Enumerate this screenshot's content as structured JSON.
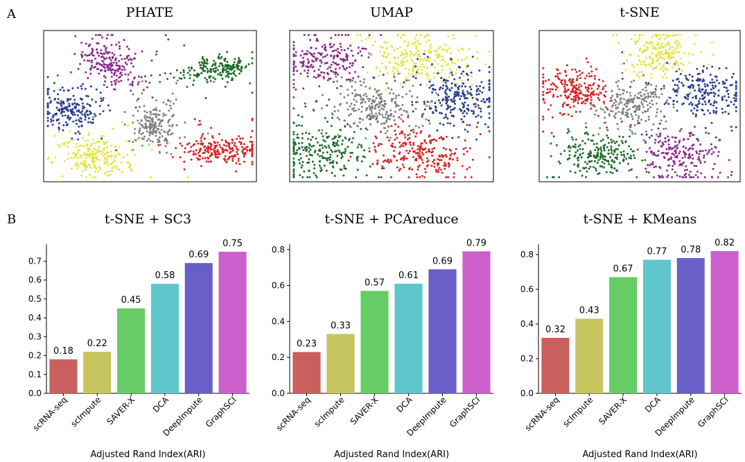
{
  "panel_labels": [
    "A",
    "B"
  ],
  "embeddings": {
    "titles": [
      "PHATE",
      "UMAP",
      "t-SNE"
    ]
  },
  "chart_data": [
    {
      "type": "bar",
      "title": "t-SNE + SC3",
      "categories": [
        "scRNA-seq",
        "scImpute",
        "SAVER-X",
        "DCA",
        "DeepImpute",
        "GraphSCI"
      ],
      "values": [
        0.18,
        0.22,
        0.45,
        0.58,
        0.69,
        0.75
      ],
      "colors": [
        "#c9605e",
        "#c6c45e",
        "#66cc66",
        "#5fc6cc",
        "#6a5fc8",
        "#cc5fcc"
      ],
      "ylim": [
        0,
        0.79
      ],
      "yticks": [
        {
          "value": 0,
          "label": "0.0"
        },
        0.1,
        0.2,
        0.3,
        0.4,
        0.5,
        0.6,
        0.7
      ],
      "xlabel": "Adjusted Rand Index(ARI)"
    },
    {
      "type": "bar",
      "title": "t-SNE + PCAreduce",
      "categories": [
        "scRNA-seq",
        "scImpute",
        "SAVER-X",
        "DCA",
        "DeepImpute",
        "GraphSCI"
      ],
      "values": [
        0.23,
        0.33,
        0.57,
        0.61,
        0.69,
        0.79
      ],
      "colors": [
        "#c9605e",
        "#c6c45e",
        "#66cc66",
        "#5fc6cc",
        "#6a5fc8",
        "#cc5fcc"
      ],
      "ylim": [
        0,
        0.83
      ],
      "yticks": [
        {
          "value": 0,
          "label": "0.0"
        },
        0.2,
        0.4,
        0.6,
        0.8
      ],
      "xlabel": "Adjusted Rand Index(ARI)"
    },
    {
      "type": "bar",
      "title": "t-SNE + KMeans",
      "categories": [
        "scRNA-seq",
        "scImpute",
        "SAVER-X",
        "DCA",
        "DeepImpute",
        "GraphSCI"
      ],
      "values": [
        0.32,
        0.43,
        0.67,
        0.77,
        0.78,
        0.82
      ],
      "colors": [
        "#c9605e",
        "#c6c45e",
        "#66cc66",
        "#5fc6cc",
        "#6a5fc8",
        "#cc5fcc"
      ],
      "ylim": [
        0,
        0.86
      ],
      "yticks": [
        {
          "value": 0,
          "label": "0.0"
        },
        0.2,
        0.4,
        0.6,
        0.8
      ],
      "xlabel": "Adjusted Rand Index(ARI)"
    }
  ]
}
